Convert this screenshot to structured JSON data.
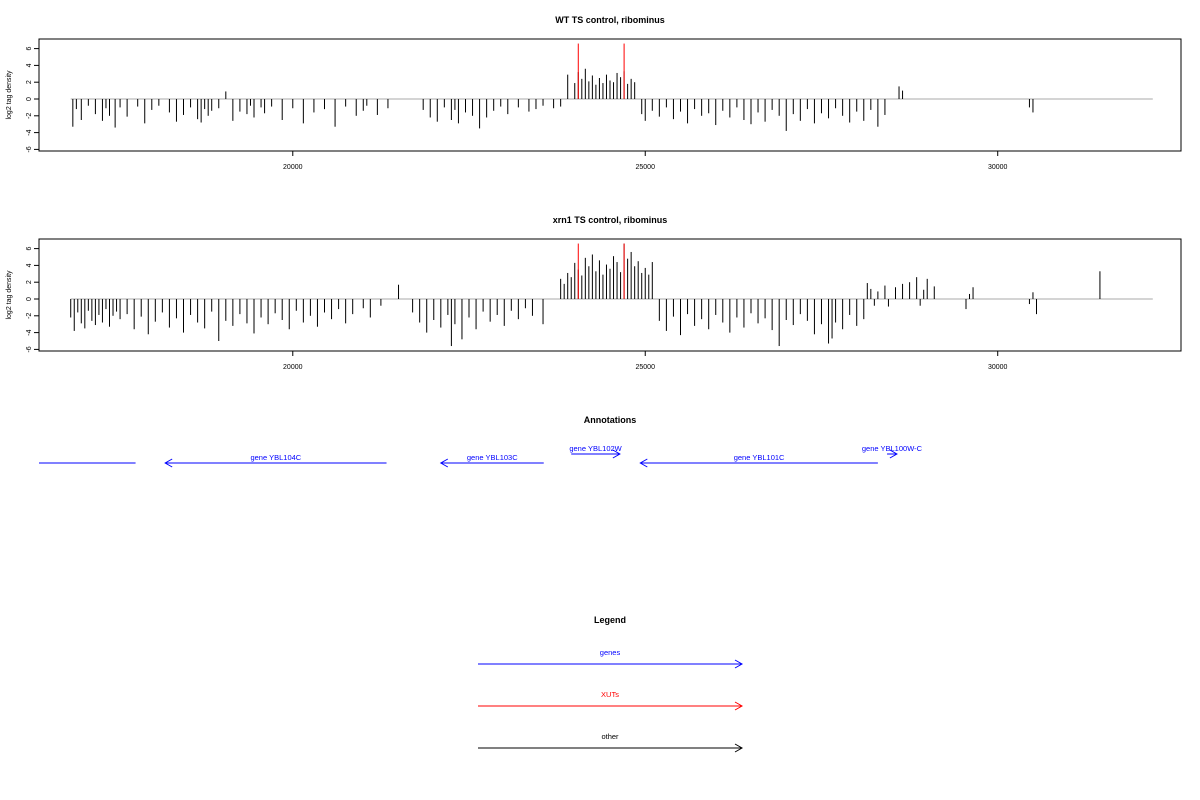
{
  "colors": {
    "genes": "#0000ff",
    "xuts": "#ff0000",
    "other": "#000000",
    "zero_line": "#aaaaaa",
    "frame": "#000000"
  },
  "panels": [
    {
      "title": "WT TS control, ribominus",
      "ylabel": "log2 tag density",
      "y_ticks": [
        "6",
        "4",
        "2",
        "0",
        "-2",
        "-4",
        "-6"
      ],
      "x_ticks": [
        "20000",
        "25000",
        "30000"
      ]
    },
    {
      "title": "xrn1 TS control, ribominus",
      "ylabel": "log2 tag density",
      "y_ticks": [
        "6",
        "4",
        "2",
        "0",
        "-2",
        "-4",
        "-6"
      ],
      "x_ticks": [
        "20000",
        "25000",
        "30000"
      ]
    }
  ],
  "annotations": {
    "title": "Annotations",
    "features": [
      {
        "label": "",
        "start": 16400,
        "end": 17770,
        "strand": "-",
        "kind": "genes"
      },
      {
        "label": "gene YBL104C",
        "start": 18190,
        "end": 21330,
        "strand": "-",
        "kind": "genes"
      },
      {
        "label": "gene YBL103C",
        "start": 22100,
        "end": 23560,
        "strand": "-",
        "kind": "genes"
      },
      {
        "label": "gene YBL102W",
        "start": 23950,
        "end": 24640,
        "strand": "+",
        "kind": "genes"
      },
      {
        "label": "gene YBL101C",
        "start": 24930,
        "end": 28300,
        "strand": "-",
        "kind": "genes"
      },
      {
        "label": "gene YBL100W-C",
        "start": 28430,
        "end": 28570,
        "strand": "+",
        "kind": "genes"
      }
    ]
  },
  "legend": {
    "title": "Legend",
    "items": [
      {
        "label": "genes",
        "kind": "genes"
      },
      {
        "label": "XUTs",
        "kind": "xuts"
      },
      {
        "label": "other",
        "kind": "other"
      }
    ]
  },
  "chart_data": [
    {
      "type": "bar",
      "title": "WT TS control, ribominus",
      "xlabel": "",
      "ylabel": "log2 tag density",
      "xlim": [
        16400,
        32600
      ],
      "ylim": [
        -6,
        6
      ],
      "grid": false,
      "x_ticks": [
        20000,
        25000,
        30000
      ],
      "y_ticks": [
        6,
        4,
        2,
        0,
        -2,
        -4,
        -6
      ],
      "xut_marks": [
        {
          "x": 24050,
          "y": 6.6
        },
        {
          "x": 24700,
          "y": 6.6
        }
      ],
      "series": [
        {
          "name": "",
          "x": [
            16880,
            16930,
            17000,
            17100,
            17200,
            17300,
            17350,
            17400,
            17480,
            17550,
            17650,
            17800,
            17900,
            18000,
            18100,
            18250,
            18350,
            18450,
            18550,
            18650,
            18700,
            18750,
            18800,
            18850,
            18950,
            19050,
            19150,
            19250,
            19350,
            19400,
            19450,
            19550,
            19600,
            19700,
            19850,
            20000,
            20150,
            20300,
            20450,
            20600,
            20750,
            20900,
            21000,
            21050,
            21200,
            21350,
            21850,
            21950,
            22050,
            22150,
            22250,
            22300,
            22350,
            22450,
            22550,
            22650,
            22750,
            22850,
            22950,
            23050,
            23200,
            23350,
            23450,
            23550,
            23700,
            23800,
            23900,
            24000,
            24050,
            24100,
            24150,
            24200,
            24250,
            24300,
            24350,
            24400,
            24450,
            24500,
            24550,
            24600,
            24650,
            24700,
            24750,
            24800,
            24850,
            24950,
            25000,
            25100,
            25200,
            25300,
            25400,
            25500,
            25600,
            25700,
            25800,
            25900,
            26000,
            26100,
            26200,
            26300,
            26400,
            26500,
            26600,
            26700,
            26800,
            26900,
            27000,
            27100,
            27200,
            27300,
            27400,
            27500,
            27600,
            27700,
            27800,
            27900,
            28000,
            28100,
            28200,
            28300,
            28400,
            28600,
            28650,
            30450,
            30500
          ],
          "values": [
            -3.3,
            -1.2,
            -2.5,
            -0.8,
            -1.8,
            -2.6,
            -1.1,
            -2.0,
            -3.4,
            -1.0,
            -2.1,
            -0.9,
            -2.9,
            -1.3,
            -0.8,
            -1.6,
            -2.7,
            -1.9,
            -1.0,
            -2.4,
            -2.8,
            -1.2,
            -2.0,
            -1.4,
            -1.1,
            0.9,
            -2.6,
            -1.5,
            -1.8,
            -0.8,
            -2.2,
            -1.0,
            -1.7,
            -0.9,
            -2.5,
            -1.1,
            -2.9,
            -1.6,
            -1.2,
            -3.3,
            -0.9,
            -2.0,
            -1.4,
            -0.8,
            -1.9,
            -1.1,
            -1.3,
            -2.2,
            -2.7,
            -1.0,
            -2.5,
            -1.3,
            -2.9,
            -1.6,
            -2.0,
            -3.5,
            -2.2,
            -1.4,
            -0.9,
            -1.8,
            -1.0,
            -1.5,
            -1.2,
            -0.8,
            -1.1,
            -0.9,
            2.9,
            1.9,
            3.2,
            2.4,
            3.6,
            2.1,
            2.8,
            1.7,
            2.5,
            1.9,
            2.9,
            2.2,
            2.0,
            3.1,
            2.6,
            3.3,
            1.8,
            2.4,
            2.0,
            -1.8,
            -2.6,
            -1.4,
            -2.1,
            -1.0,
            -2.4,
            -1.5,
            -2.9,
            -1.2,
            -2.0,
            -1.7,
            -3.1,
            -1.4,
            -2.2,
            -1.0,
            -2.5,
            -3.0,
            -1.6,
            -2.7,
            -1.3,
            -2.0,
            -3.8,
            -1.8,
            -2.6,
            -1.2,
            -2.9,
            -1.7,
            -2.3,
            -1.1,
            -2.0,
            -2.8,
            -1.5,
            -2.6,
            -1.3,
            -3.3,
            -1.9,
            1.5,
            1.0,
            -1.0,
            -1.6
          ]
        }
      ]
    },
    {
      "type": "bar",
      "title": "xrn1 TS control, ribominus",
      "xlabel": "",
      "ylabel": "log2 tag density",
      "xlim": [
        16400,
        32600
      ],
      "ylim": [
        -6,
        6
      ],
      "grid": false,
      "x_ticks": [
        20000,
        25000,
        30000
      ],
      "y_ticks": [
        6,
        4,
        2,
        0,
        -2,
        -4,
        -6
      ],
      "xut_marks": [
        {
          "x": 24050,
          "y": 6.6
        },
        {
          "x": 24700,
          "y": 6.6
        }
      ],
      "series": [
        {
          "name": "",
          "x": [
            16850,
            16900,
            16950,
            17000,
            17050,
            17100,
            17150,
            17200,
            17250,
            17300,
            17350,
            17400,
            17450,
            17500,
            17550,
            17650,
            17750,
            17850,
            17950,
            18050,
            18150,
            18250,
            18350,
            18450,
            18550,
            18650,
            18750,
            18850,
            18950,
            19050,
            19150,
            19250,
            19350,
            19450,
            19550,
            19650,
            19750,
            19850,
            19950,
            20050,
            20150,
            20250,
            20350,
            20450,
            20550,
            20650,
            20750,
            20850,
            21000,
            21100,
            21250,
            21500,
            21700,
            21800,
            21900,
            22000,
            22100,
            22200,
            22250,
            22300,
            22400,
            22500,
            22600,
            22700,
            22800,
            22900,
            23000,
            23100,
            23200,
            23300,
            23400,
            23550,
            23800,
            23850,
            23900,
            23950,
            24000,
            24050,
            24100,
            24150,
            24200,
            24250,
            24300,
            24350,
            24400,
            24450,
            24500,
            24550,
            24600,
            24650,
            24700,
            24750,
            24800,
            24850,
            24900,
            24950,
            25000,
            25050,
            25100,
            25200,
            25300,
            25400,
            25500,
            25600,
            25700,
            25800,
            25900,
            26000,
            26100,
            26200,
            26300,
            26400,
            26500,
            26600,
            26700,
            26800,
            26900,
            27000,
            27100,
            27200,
            27300,
            27400,
            27500,
            27600,
            27650,
            27700,
            27800,
            27900,
            28000,
            28100,
            28150,
            28200,
            28250,
            28300,
            28400,
            28450,
            28550,
            28650,
            28750,
            28850,
            28900,
            28950,
            29000,
            29100,
            29550,
            29600,
            29650,
            30450,
            30500,
            30550,
            31450
          ],
          "values": [
            -2.2,
            -3.8,
            -1.6,
            -2.9,
            -3.5,
            -1.4,
            -2.6,
            -3.1,
            -1.9,
            -2.8,
            -1.2,
            -3.3,
            -2.0,
            -1.5,
            -2.4,
            -1.8,
            -3.6,
            -2.1,
            -4.2,
            -2.7,
            -1.6,
            -3.4,
            -2.3,
            -4.0,
            -1.9,
            -2.8,
            -3.5,
            -1.5,
            -5.0,
            -2.6,
            -3.2,
            -1.8,
            -2.9,
            -4.1,
            -2.2,
            -3.0,
            -1.7,
            -2.5,
            -3.6,
            -1.4,
            -2.8,
            -2.0,
            -3.3,
            -1.6,
            -2.4,
            -1.2,
            -2.9,
            -1.8,
            -1.1,
            -2.2,
            -0.8,
            1.7,
            -1.6,
            -2.8,
            -4.0,
            -2.5,
            -3.4,
            -1.9,
            -5.6,
            -3.0,
            -4.8,
            -2.2,
            -3.6,
            -1.5,
            -2.7,
            -1.9,
            -3.2,
            -1.4,
            -2.4,
            -1.1,
            -2.0,
            -3.0,
            2.4,
            1.8,
            3.1,
            2.6,
            4.3,
            3.5,
            2.8,
            4.9,
            3.9,
            5.3,
            3.3,
            4.6,
            2.9,
            4.1,
            3.6,
            5.1,
            4.4,
            3.2,
            6.6,
            4.8,
            5.6,
            3.9,
            4.5,
            3.1,
            3.7,
            2.9,
            4.4,
            -2.6,
            -3.8,
            -2.1,
            -4.3,
            -1.8,
            -3.2,
            -2.4,
            -3.6,
            -1.9,
            -2.8,
            -4.0,
            -2.2,
            -3.4,
            -1.7,
            -2.9,
            -2.3,
            -3.7,
            -5.6,
            -2.5,
            -3.1,
            -1.8,
            -2.6,
            -4.2,
            -3.0,
            -5.3,
            -4.7,
            -2.8,
            -3.6,
            -1.9,
            -3.2,
            -2.4,
            1.9,
            1.2,
            -0.8,
            0.9,
            1.6,
            -0.9,
            1.4,
            1.8,
            2.0,
            2.6,
            -0.8,
            1.1,
            2.4,
            1.5,
            -1.2,
            0.6,
            1.4,
            -0.6,
            0.8,
            -1.8,
            3.3
          ]
        }
      ]
    }
  ]
}
